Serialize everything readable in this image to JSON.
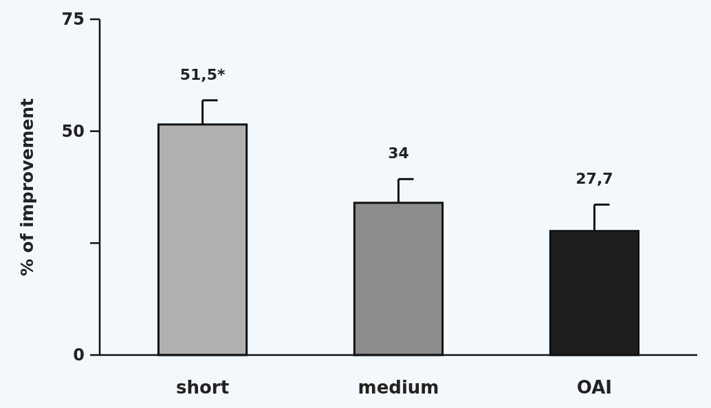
{
  "chart_data": {
    "type": "bar",
    "ylabel": "% of improvement",
    "categories": [
      "short",
      "medium",
      "OAI"
    ],
    "values": [
      51.5,
      34,
      27.7
    ],
    "colors": [
      "#b0b0b0",
      "#8c8c8c",
      "#1e1e1e"
    ],
    "errors": [
      [
        51.5,
        56.9
      ],
      [
        34,
        39.3
      ],
      [
        27.7,
        33.6
      ]
    ],
    "value_labels": [
      "51,5*",
      "34",
      "27,7"
    ],
    "ylim": [
      0,
      75
    ],
    "yticks": [
      0,
      {
        "value": 25,
        "label": null
      },
      50,
      75
    ],
    "grid": false
  }
}
